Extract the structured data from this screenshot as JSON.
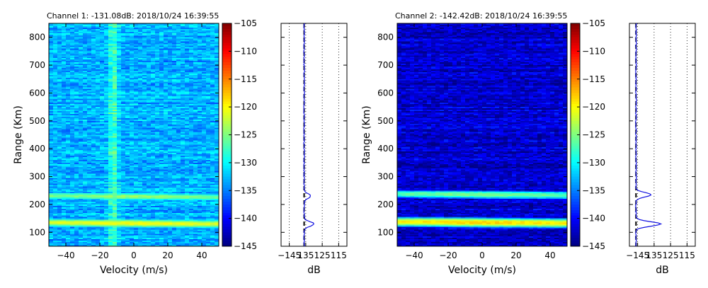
{
  "chart_data": [
    {
      "type": "heatmap",
      "title": "Channel 1: -131.08dB: 2018/10/24 16:39:55",
      "xlabel": "Velocity (m/s)",
      "ylabel": "Range (Km)",
      "xlim": [
        -50,
        50
      ],
      "ylim": [
        50,
        850
      ],
      "xticks": [
        -40,
        -20,
        0,
        20,
        40
      ],
      "yticks": [
        100,
        200,
        300,
        400,
        500,
        600,
        700,
        800
      ],
      "colormap": "jet",
      "color_range": [
        -145,
        -105
      ],
      "noise_level": -133,
      "features": {
        "velocity_stripe_center": -12,
        "bands": [
          {
            "range": 228,
            "peak": -124
          },
          {
            "range": 132,
            "peak": -120
          }
        ]
      }
    },
    {
      "type": "colorbar",
      "ticks": [
        -105,
        -110,
        -115,
        -120,
        -125,
        -130,
        -135,
        -140,
        -145
      ],
      "range": [
        -145,
        -105
      ]
    },
    {
      "type": "line",
      "xlabel": "dB",
      "xlim": [
        -150,
        -110
      ],
      "xticks": [
        -145,
        -135,
        -125,
        -115
      ],
      "xtick_labels": [
        "−145",
        "135",
        "125",
        "115"
      ],
      "ylim": [
        50,
        850
      ],
      "mean_db": -136,
      "peaks": [
        {
          "range": 230,
          "value": -132
        },
        {
          "range": 130,
          "value": -130
        }
      ]
    },
    {
      "type": "heatmap",
      "title": "Channel 2: -142.42dB: 2018/10/24 16:39:55",
      "xlabel": "Velocity (m/s)",
      "ylabel": "Range (Km)",
      "xlim": [
        -50,
        50
      ],
      "ylim": [
        50,
        850
      ],
      "xticks": [
        -40,
        -20,
        0,
        20,
        40
      ],
      "yticks": [
        100,
        200,
        300,
        400,
        500,
        600,
        700,
        800
      ],
      "colormap": "jet",
      "color_range": [
        -145,
        -105
      ],
      "noise_level": -142,
      "features": {
        "bands": [
          {
            "range": 235,
            "peak": -125
          },
          {
            "range": 135,
            "peak": -118
          }
        ]
      }
    },
    {
      "type": "colorbar",
      "ticks": [
        -105,
        -110,
        -115,
        -120,
        -125,
        -130,
        -135,
        -140,
        -145
      ],
      "range": [
        -145,
        -105
      ]
    },
    {
      "type": "line",
      "xlabel": "dB",
      "xlim": [
        -150,
        -110
      ],
      "xticks": [
        -145,
        -135,
        -125,
        -115
      ],
      "xtick_labels": [
        "−145",
        "135",
        "125",
        "115"
      ],
      "ylim": [
        50,
        850
      ],
      "mean_db": -146,
      "peaks": [
        {
          "range": 235,
          "value": -137
        },
        {
          "range": 130,
          "value": -131
        }
      ]
    }
  ]
}
